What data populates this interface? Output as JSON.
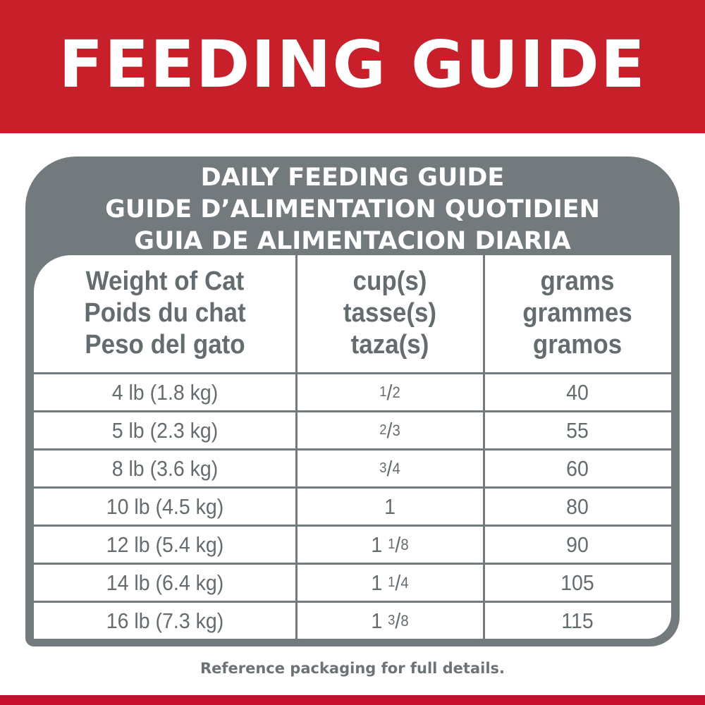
{
  "title": "FEEDING GUIDE",
  "panel_title": [
    "DAILY FEEDING GUIDE",
    "GUIDE D’ALIMENTATION QUOTIDIEN",
    "GUIA DE ALIMENTACION DIARIA"
  ],
  "columns": [
    [
      "Weight of Cat",
      "Poids du chat",
      "Peso del gato"
    ],
    [
      "cup(s)",
      "tasse(s)",
      "taza(s)"
    ],
    [
      "grams",
      "grammes",
      "gramos"
    ]
  ],
  "rows": [
    {
      "weight": "4 lb (1.8 kg)",
      "cup_whole": "",
      "cup_num": "1",
      "cup_den": "2",
      "grams": "40"
    },
    {
      "weight": "5 lb (2.3 kg)",
      "cup_whole": "",
      "cup_num": "2",
      "cup_den": "3",
      "grams": "55"
    },
    {
      "weight": "8 lb (3.6 kg)",
      "cup_whole": "",
      "cup_num": "3",
      "cup_den": "4",
      "grams": "60"
    },
    {
      "weight": "10 lb (4.5 kg)",
      "cup_whole": "1",
      "cup_num": "",
      "cup_den": "",
      "grams": "80"
    },
    {
      "weight": "12 lb (5.4 kg)",
      "cup_whole": "1",
      "cup_num": "1",
      "cup_den": "8",
      "grams": "90"
    },
    {
      "weight": "14 lb (6.4 kg)",
      "cup_whole": "1",
      "cup_num": "1",
      "cup_den": "4",
      "grams": "105"
    },
    {
      "weight": "16 lb (7.3 kg)",
      "cup_whole": "1",
      "cup_num": "3",
      "cup_den": "8",
      "grams": "115"
    }
  ],
  "footer": "Reference packaging for full details.",
  "colors": {
    "red": "#c8202a",
    "gray": "#737a7e",
    "text": "#656c70"
  }
}
